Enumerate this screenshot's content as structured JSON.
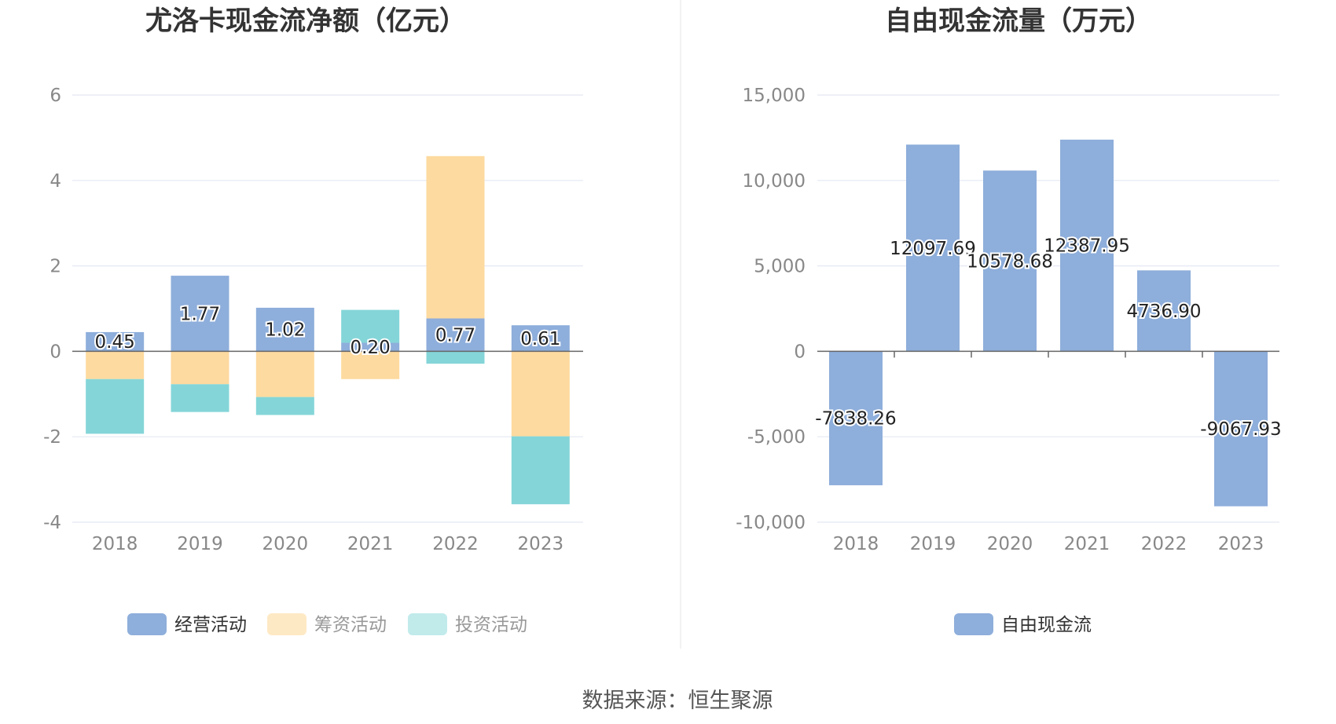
{
  "colors": {
    "operating": "#8EAEDB",
    "financing": "#FDDA9F",
    "investing": "#84D5D8",
    "free_cash_flow": "#8EAEDB",
    "grid": "#E3E8F2",
    "axis": "#666666",
    "divider": "#EEEEEE"
  },
  "source": "数据来源：恒生聚源",
  "chart_data": [
    {
      "type": "bar",
      "stacked": true,
      "title": "尤洛卡现金流净额（亿元）",
      "categories": [
        "2018",
        "2019",
        "2020",
        "2021",
        "2022",
        "2023"
      ],
      "ylim": [
        -4,
        6
      ],
      "yticks": [
        "6",
        "4",
        "2",
        "0",
        "-2",
        "-4"
      ],
      "ytick_values": [
        6,
        4,
        2,
        0,
        -2,
        -4
      ],
      "grid": true,
      "legend_position": "bottom",
      "series": [
        {
          "name": "经营活动",
          "color": "#8EAEDB",
          "values": [
            0.45,
            1.77,
            1.02,
            0.2,
            0.77,
            0.61
          ],
          "labels": [
            "0.45",
            "1.77",
            "1.02",
            "0.20",
            "0.77",
            "0.61"
          ]
        },
        {
          "name": "筹资活动",
          "color": "#FDDA9F",
          "values": [
            -0.65,
            -0.77,
            -1.07,
            -0.65,
            3.8,
            -1.99
          ]
        },
        {
          "name": "投资活动",
          "color": "#84D5D8",
          "values": [
            -1.28,
            -0.65,
            -0.42,
            0.77,
            -0.29,
            -1.59
          ]
        }
      ]
    },
    {
      "type": "bar",
      "title": "自由现金流量（万元）",
      "categories": [
        "2018",
        "2019",
        "2020",
        "2021",
        "2022",
        "2023"
      ],
      "ylim": [
        -10000,
        15000
      ],
      "yticks": [
        "15,000",
        "10,000",
        "5,000",
        "0",
        "-5,000",
        "-10,000"
      ],
      "ytick_values": [
        15000,
        10000,
        5000,
        0,
        -5000,
        -10000
      ],
      "grid": true,
      "legend_position": "bottom",
      "series": [
        {
          "name": "自由现金流",
          "color": "#8EAEDB",
          "values": [
            -7838.26,
            12097.69,
            10578.68,
            12387.95,
            4736.9,
            -9067.93
          ],
          "labels": [
            "-7838.26",
            "12097.69",
            "10578.68",
            "12387.95",
            "4736.90",
            "-9067.93"
          ]
        }
      ]
    }
  ]
}
